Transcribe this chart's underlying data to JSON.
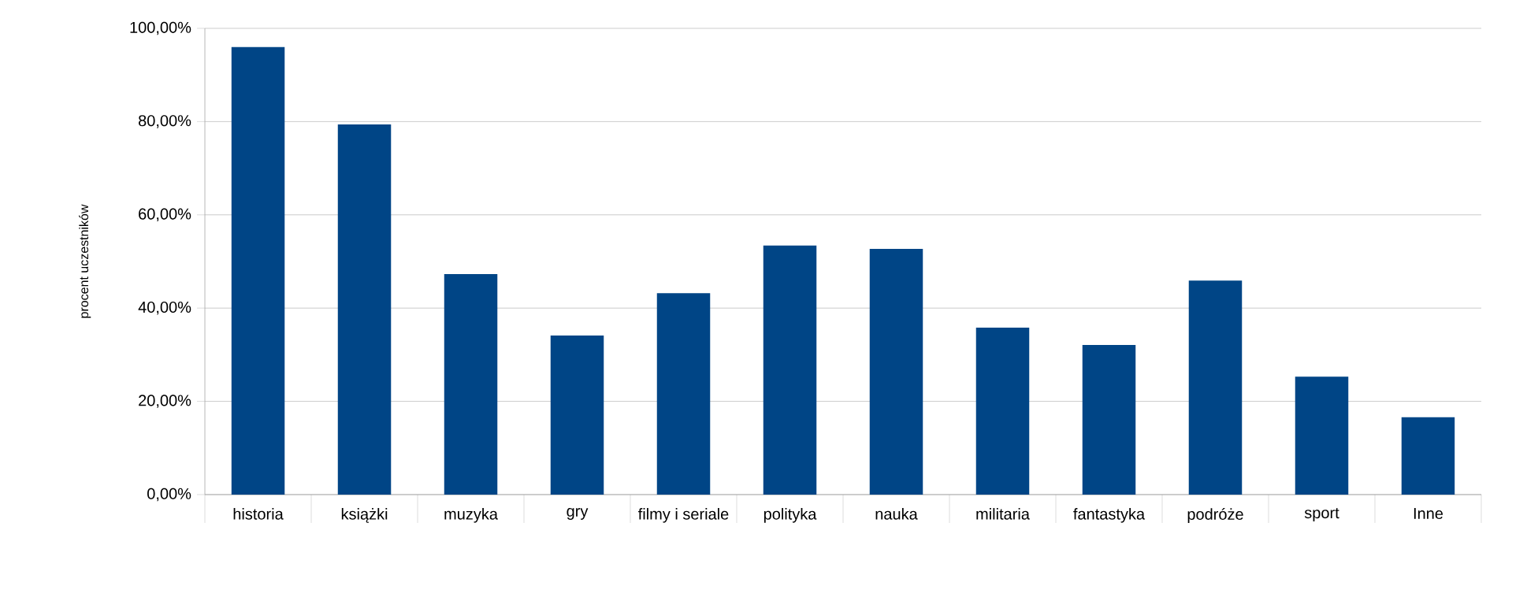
{
  "chart_data": {
    "type": "bar",
    "ylabel": "procent uczestników",
    "categories": [
      "historia",
      "książki",
      "muzyka",
      "gry",
      "filmy i seriale",
      "polityka",
      "nauka",
      "militaria",
      "fantastyka",
      "podróże",
      "sport",
      "Inne"
    ],
    "values": [
      96,
      79.4,
      47.3,
      34.1,
      43.2,
      53.4,
      52.7,
      35.8,
      32.1,
      45.9,
      25.3,
      16.6
    ],
    "color": "#004586",
    "ylim": [
      0,
      100
    ],
    "yticks": [
      {
        "value": 0,
        "label": "0,00%"
      },
      {
        "value": 20,
        "label": "20,00%"
      },
      {
        "value": 40,
        "label": "40,00%"
      },
      {
        "value": 60,
        "label": "60,00%"
      },
      {
        "value": 80,
        "label": "80,00%"
      },
      {
        "value": 100,
        "label": "100,00%"
      }
    ],
    "grid": "y"
  }
}
